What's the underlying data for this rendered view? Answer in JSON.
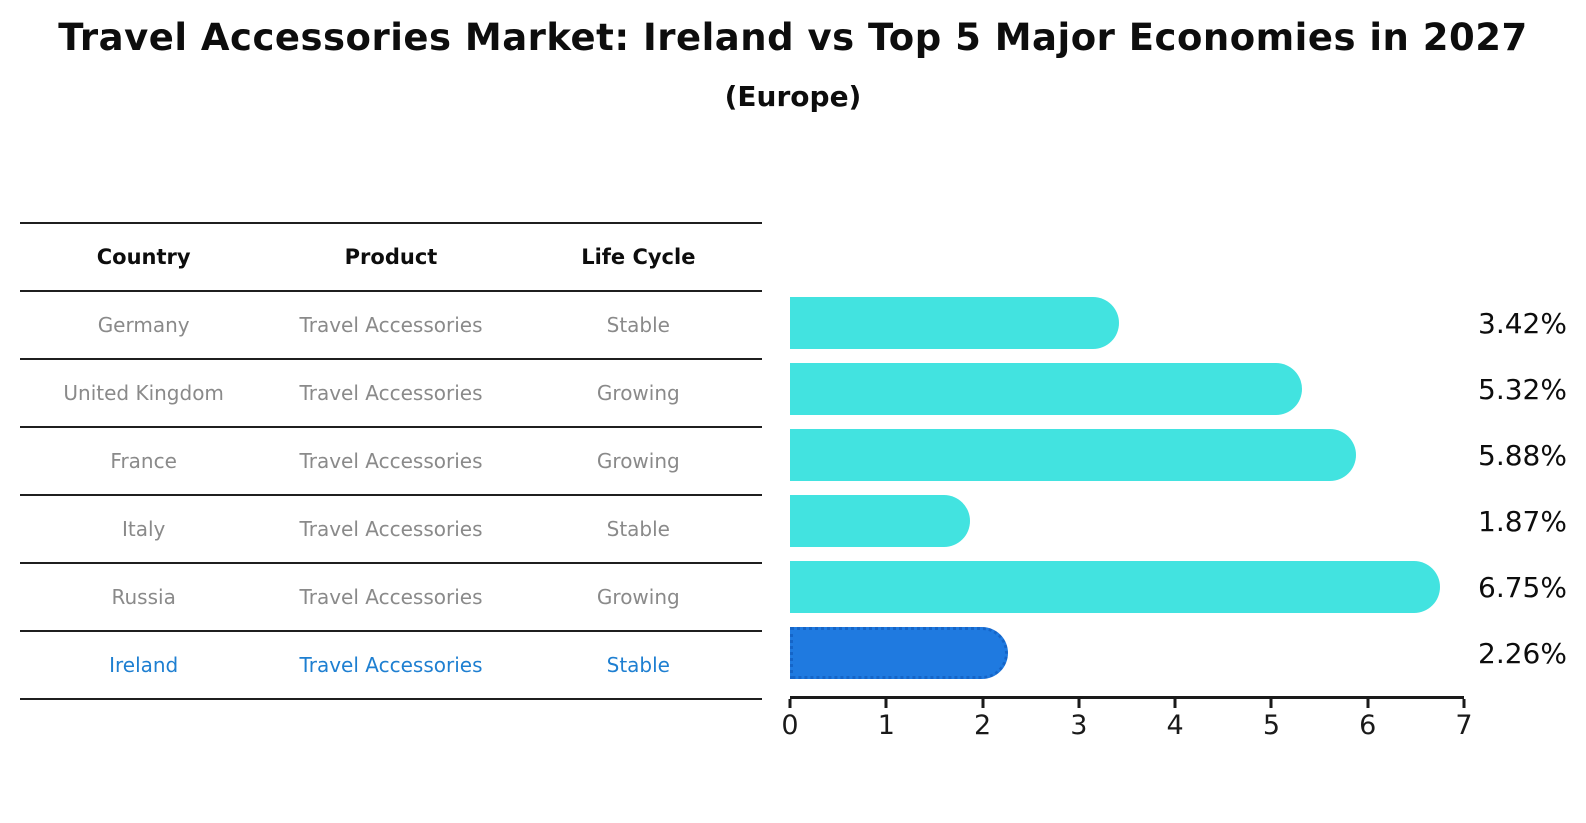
{
  "title": "Travel Accessories Market: Ireland vs Top 5 Major Economies in 2027",
  "subtitle": "(Europe)",
  "table": {
    "headers": [
      "Country",
      "Product",
      "Life Cycle"
    ]
  },
  "rows": [
    {
      "country": "Germany",
      "product": "Travel Accessories",
      "life_cycle": "Stable",
      "value": 3.42,
      "label": "3.42%",
      "highlight": false
    },
    {
      "country": "United Kingdom",
      "product": "Travel Accessories",
      "life_cycle": "Growing",
      "value": 5.32,
      "label": "5.32%",
      "highlight": false
    },
    {
      "country": "France",
      "product": "Travel Accessories",
      "life_cycle": "Growing",
      "value": 5.88,
      "label": "5.88%",
      "highlight": false
    },
    {
      "country": "Italy",
      "product": "Travel Accessories",
      "life_cycle": "Stable",
      "value": 1.87,
      "label": "1.87%",
      "highlight": false
    },
    {
      "country": "Russia",
      "product": "Travel Accessories",
      "life_cycle": "Growing",
      "value": 6.75,
      "label": "6.75%",
      "highlight": false
    },
    {
      "country": "Ireland",
      "product": "Travel Accessories",
      "life_cycle": "Stable",
      "value": 2.26,
      "label": "2.26%",
      "highlight": true
    }
  ],
  "chart_data": {
    "type": "bar",
    "orientation": "horizontal",
    "title": "Travel Accessories Market: Ireland vs Top 5 Major Economies in 2027 (Europe)",
    "categories": [
      "Germany",
      "United Kingdom",
      "France",
      "Italy",
      "Russia",
      "Ireland"
    ],
    "values": [
      3.42,
      5.32,
      5.88,
      1.87,
      6.75,
      2.26
    ],
    "value_labels": [
      "3.42%",
      "5.32%",
      "5.88%",
      "1.87%",
      "6.75%",
      "2.26%"
    ],
    "xlabel": "",
    "ylabel": "",
    "xlim": [
      0,
      7
    ],
    "x_ticks": [
      0,
      1,
      2,
      3,
      4,
      5,
      6,
      7
    ],
    "grid": false,
    "legend": false,
    "highlight_index": 5
  },
  "colors": {
    "bar": "#42E3E0",
    "hl-bar": "#1F7AE0",
    "hl-border": "#1565C8",
    "hl-text": "#1E7FD1",
    "text-gray": "#8A8A8A",
    "line": "#1F1F1F"
  }
}
